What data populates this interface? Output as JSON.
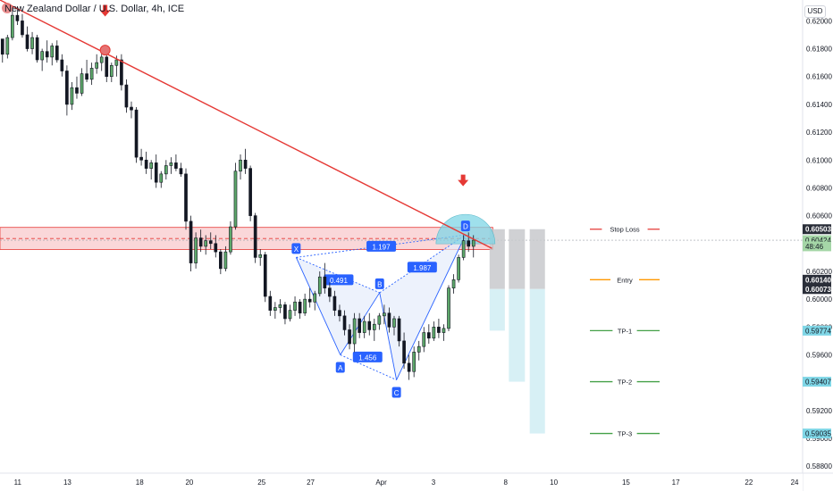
{
  "title": "New Zealand Dollar / U.S. Dollar, 4h, ICE",
  "currency_label": "USD",
  "colors": {
    "up": "#26a69a",
    "up_body": "#2f6b3b",
    "down": "#131722",
    "trendline": "#e53935",
    "zone_fill": "#f8c9cc",
    "zone_border": "#e53935",
    "pattern": "#2962ff",
    "pattern_fill": "#e6ecfb",
    "stop_loss": "#e53935",
    "entry": "#ff9800",
    "tp": "#43a047",
    "risk_box": "#c8c9cd",
    "reward_box": "#d7f0f5",
    "arc": "#7fd6e6",
    "price_badge_dark": "#2a2e39",
    "price_badge_cyan": "#7fd6e6",
    "price_badge_green": "#a5d6a7"
  },
  "chart_data": {
    "type": "candlestick",
    "title": "New Zealand Dollar / U.S. Dollar, 4h, ICE",
    "ylim": [
      0.5875,
      0.6215
    ],
    "y_ticks": [
      "0.62000",
      "0.61800",
      "0.61600",
      "0.61400",
      "0.61200",
      "0.61000",
      "0.60800",
      "0.60600",
      "0.60200",
      "0.60000",
      "0.59800",
      "0.59600",
      "0.59200",
      "0.59000",
      "0.58800"
    ],
    "x_ticks": [
      {
        "label": "11",
        "t": 0.022
      },
      {
        "label": "13",
        "t": 0.084
      },
      {
        "label": "18",
        "t": 0.174
      },
      {
        "label": "20",
        "t": 0.236
      },
      {
        "label": "25",
        "t": 0.326
      },
      {
        "label": "27",
        "t": 0.387
      },
      {
        "label": "Apr",
        "t": 0.475
      },
      {
        "label": "3",
        "t": 0.54
      },
      {
        "label": "8",
        "t": 0.63
      },
      {
        "label": "10",
        "t": 0.69
      },
      {
        "label": "15",
        "t": 0.78
      },
      {
        "label": "17",
        "t": 0.842
      },
      {
        "label": "22",
        "t": 0.933
      },
      {
        "label": "24",
        "t": 0.99
      }
    ],
    "candles": [
      [
        0.6187,
        0.6187,
        0.617,
        0.6176
      ],
      [
        0.6176,
        0.619,
        0.6173,
        0.6188
      ],
      [
        0.6188,
        0.6208,
        0.6186,
        0.6204
      ],
      [
        0.6204,
        0.621,
        0.6197,
        0.62
      ],
      [
        0.62,
        0.6205,
        0.6188,
        0.619
      ],
      [
        0.619,
        0.6196,
        0.6178,
        0.618
      ],
      [
        0.618,
        0.6192,
        0.6176,
        0.6188
      ],
      [
        0.6188,
        0.619,
        0.617,
        0.6172
      ],
      [
        0.6172,
        0.618,
        0.6164,
        0.6178
      ],
      [
        0.6178,
        0.6186,
        0.617,
        0.6174
      ],
      [
        0.6174,
        0.6184,
        0.6168,
        0.6182
      ],
      [
        0.6182,
        0.6186,
        0.617,
        0.6172
      ],
      [
        0.6172,
        0.6176,
        0.616,
        0.6164
      ],
      [
        0.6164,
        0.6168,
        0.6132,
        0.614
      ],
      [
        0.614,
        0.6156,
        0.6136,
        0.6152
      ],
      [
        0.6152,
        0.616,
        0.6144,
        0.6148
      ],
      [
        0.6148,
        0.6166,
        0.6146,
        0.6162
      ],
      [
        0.6162,
        0.6172,
        0.6156,
        0.6158
      ],
      [
        0.6158,
        0.617,
        0.6154,
        0.6166
      ],
      [
        0.6166,
        0.6176,
        0.6162,
        0.617
      ],
      [
        0.617,
        0.618,
        0.6164,
        0.6174
      ],
      [
        0.6174,
        0.6178,
        0.6156,
        0.616
      ],
      [
        0.616,
        0.617,
        0.6156,
        0.6168
      ],
      [
        0.6168,
        0.6175,
        0.616,
        0.6172
      ],
      [
        0.6172,
        0.6176,
        0.615,
        0.6154
      ],
      [
        0.6154,
        0.6158,
        0.6134,
        0.6138
      ],
      [
        0.6138,
        0.6142,
        0.613,
        0.6136
      ],
      [
        0.6136,
        0.6138,
        0.6098,
        0.6102
      ],
      [
        0.6102,
        0.6108,
        0.6096,
        0.61
      ],
      [
        0.61,
        0.6106,
        0.609,
        0.6094
      ],
      [
        0.6094,
        0.61,
        0.6086,
        0.6098
      ],
      [
        0.6098,
        0.6104,
        0.608,
        0.6084
      ],
      [
        0.6084,
        0.6092,
        0.608,
        0.609
      ],
      [
        0.609,
        0.61,
        0.6086,
        0.6096
      ],
      [
        0.6096,
        0.6102,
        0.609,
        0.6098
      ],
      [
        0.6098,
        0.6104,
        0.6092,
        0.6094
      ],
      [
        0.6094,
        0.6098,
        0.6088,
        0.609
      ],
      [
        0.609,
        0.6094,
        0.605,
        0.6056
      ],
      [
        0.6056,
        0.606,
        0.602,
        0.6026
      ],
      [
        0.6026,
        0.6048,
        0.6022,
        0.6044
      ],
      [
        0.6044,
        0.605,
        0.6034,
        0.6038
      ],
      [
        0.6038,
        0.6046,
        0.6032,
        0.6042
      ],
      [
        0.6042,
        0.6048,
        0.6036,
        0.604
      ],
      [
        0.604,
        0.6046,
        0.603,
        0.6034
      ],
      [
        0.6034,
        0.6036,
        0.6018,
        0.6022
      ],
      [
        0.6022,
        0.6038,
        0.602,
        0.6034
      ],
      [
        0.6034,
        0.6056,
        0.6032,
        0.6052
      ],
      [
        0.6052,
        0.6098,
        0.605,
        0.6092
      ],
      [
        0.6092,
        0.6104,
        0.6086,
        0.61
      ],
      [
        0.61,
        0.6108,
        0.609,
        0.6094
      ],
      [
        0.6094,
        0.6096,
        0.6056,
        0.606
      ],
      [
        0.606,
        0.6062,
        0.6026,
        0.603
      ],
      [
        0.603,
        0.6036,
        0.6024,
        0.6032
      ],
      [
        0.6032,
        0.6034,
        0.5998,
        0.6002
      ],
      [
        0.6002,
        0.6006,
        0.5988,
        0.5992
      ],
      [
        0.5992,
        0.5998,
        0.5986,
        0.5994
      ],
      [
        0.5994,
        0.6,
        0.599,
        0.5996
      ],
      [
        0.5996,
        0.5998,
        0.5982,
        0.5986
      ],
      [
        0.5986,
        0.5996,
        0.5984,
        0.5992
      ],
      [
        0.5992,
        0.6002,
        0.5988,
        0.5998
      ],
      [
        0.5998,
        0.6,
        0.5986,
        0.599
      ],
      [
        0.599,
        0.6004,
        0.5988,
        0.6
      ],
      [
        0.6,
        0.6008,
        0.5994,
        0.5998
      ],
      [
        0.5998,
        0.6006,
        0.5992,
        0.6004
      ],
      [
        0.6004,
        0.602,
        0.6002,
        0.6016
      ],
      [
        0.6016,
        0.6026,
        0.6004,
        0.6008
      ],
      [
        0.6008,
        0.6012,
        0.5998,
        0.6002
      ],
      [
        0.6002,
        0.6006,
        0.5988,
        0.5992
      ],
      [
        0.5992,
        0.5996,
        0.5984,
        0.5988
      ],
      [
        0.5988,
        0.5992,
        0.5974,
        0.5978
      ],
      [
        0.5978,
        0.5982,
        0.5964,
        0.5968
      ],
      [
        0.5968,
        0.599,
        0.5962,
        0.5986
      ],
      [
        0.5986,
        0.599,
        0.5972,
        0.5976
      ],
      [
        0.5976,
        0.5988,
        0.5972,
        0.5984
      ],
      [
        0.5984,
        0.599,
        0.5974,
        0.5978
      ],
      [
        0.5978,
        0.5986,
        0.597,
        0.5982
      ],
      [
        0.5982,
        0.599,
        0.5978,
        0.5988
      ],
      [
        0.5988,
        0.5996,
        0.5982,
        0.599
      ],
      [
        0.599,
        0.5994,
        0.5976,
        0.598
      ],
      [
        0.598,
        0.5988,
        0.5974,
        0.5986
      ],
      [
        0.5986,
        0.5988,
        0.5966,
        0.597
      ],
      [
        0.597,
        0.5976,
        0.595,
        0.5954
      ],
      [
        0.5954,
        0.596,
        0.5942,
        0.5948
      ],
      [
        0.5948,
        0.5966,
        0.5944,
        0.5962
      ],
      [
        0.5962,
        0.597,
        0.5956,
        0.5966
      ],
      [
        0.5966,
        0.598,
        0.5962,
        0.5976
      ],
      [
        0.5976,
        0.5982,
        0.5968,
        0.5972
      ],
      [
        0.5972,
        0.5984,
        0.597,
        0.598
      ],
      [
        0.598,
        0.5986,
        0.5972,
        0.5976
      ],
      [
        0.5976,
        0.5982,
        0.597,
        0.5979
      ],
      [
        0.5979,
        0.601,
        0.5977,
        0.6008
      ],
      [
        0.6008,
        0.6018,
        0.6004,
        0.6014
      ],
      [
        0.6014,
        0.6032,
        0.6012,
        0.603
      ],
      [
        0.603,
        0.6046,
        0.6028,
        0.6042
      ],
      [
        0.6042,
        0.6048,
        0.6034,
        0.6038
      ],
      [
        0.6038,
        0.6046,
        0.603,
        0.60424
      ]
    ],
    "resistance_zone": [
      0.60357,
      0.60516
    ],
    "zone_midline": 0.60436,
    "current_price_line": 0.60424,
    "trendline": [
      {
        "t": 0.0,
        "y": 0.6215
      },
      {
        "t": 0.613,
        "y": 0.60365
      }
    ],
    "trend_touch_point": {
      "t": 0.131,
      "y": 0.6179
    },
    "harmonic_points": [
      {
        "label": "X",
        "t": 0.369,
        "y": 0.603
      },
      {
        "label": "A",
        "t": 0.424,
        "y": 0.596
      },
      {
        "label": "B",
        "t": 0.473,
        "y": 0.60047
      },
      {
        "label": "C",
        "t": 0.494,
        "y": 0.5942
      },
      {
        "label": "D",
        "t": 0.58,
        "y": 0.60462
      }
    ],
    "ratio_labels": [
      {
        "label": "1.197",
        "t": 0.475,
        "y": 0.6038
      },
      {
        "label": "0.491",
        "t": 0.422,
        "y": 0.6014
      },
      {
        "label": "1.987",
        "t": 0.526,
        "y": 0.6023
      },
      {
        "label": "1.456",
        "t": 0.458,
        "y": 0.59585
      }
    ],
    "arrows": [
      {
        "t": 0.131,
        "y": 0.6207
      },
      {
        "t": 0.577,
        "y": 0.6085
      }
    ],
    "levels": [
      {
        "name": "Stop Loss",
        "value": 0.60503,
        "color": "#e53935"
      },
      {
        "name": "Entry",
        "value": 0.6014,
        "color": "#ff9800"
      },
      {
        "name": "TP-1",
        "value": 0.59774,
        "color": "#43a047"
      },
      {
        "name": "TP-2",
        "value": 0.59407,
        "color": "#43a047"
      },
      {
        "name": "TP-3",
        "value": 0.59035,
        "color": "#43a047"
      }
    ],
    "position_boxes": [
      {
        "t0": 0.61,
        "t1": 0.629,
        "stop": 0.60503,
        "entry": 0.60073,
        "target": 0.59774
      },
      {
        "t0": 0.634,
        "t1": 0.654,
        "stop": 0.60503,
        "entry": 0.60073,
        "target": 0.59407
      },
      {
        "t0": 0.66,
        "t1": 0.679,
        "stop": 0.60503,
        "entry": 0.60073,
        "target": 0.59035
      }
    ],
    "price_badges": [
      {
        "text": "0.60503",
        "value": 0.60503,
        "style": "dark"
      },
      {
        "text": "0.60424",
        "value": 0.60424,
        "style": "green"
      },
      {
        "text": "48:46",
        "value": 0.6038,
        "style": "green-sub"
      },
      {
        "text": "0.60140",
        "value": 0.6014,
        "style": "dark"
      },
      {
        "text": "0.60073",
        "value": 0.60073,
        "style": "dark"
      },
      {
        "text": "0.59774",
        "value": 0.59774,
        "style": "cyan"
      },
      {
        "text": "0.59407",
        "value": 0.59407,
        "style": "cyan"
      },
      {
        "text": "0.59035",
        "value": 0.59035,
        "style": "cyan"
      }
    ]
  }
}
